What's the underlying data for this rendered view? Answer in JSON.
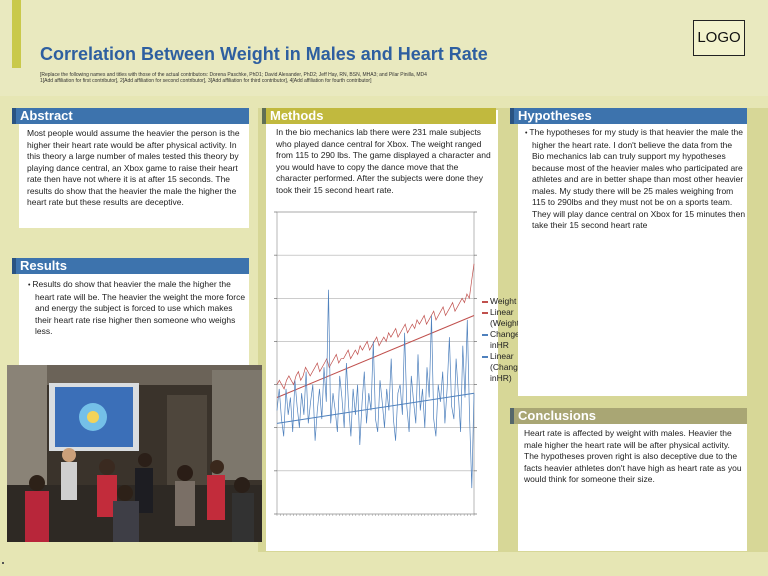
{
  "header": {
    "title": "Correlation Between Weight in Males and Heart Rate",
    "authors_line1": "[Replace the following names and titles with those of the actual contributors: Dorena Paschke, PhD1; David Alexander, PhD2; Jeff Hay, RN, BSN, MHA3; and Pilar Pinilla, MD4",
    "authors_line2": "1[Add affiliation for first contributor], 2[Add affiliation for second contributor], 3[Add affiliation for third contributor], 4[Add affiliation for fourth contributor]",
    "logo": "LOGO"
  },
  "abstract": {
    "heading": "Abstract",
    "text": "Most people would assume the heavier the person is the higher their heart rate would be after physical activity. In this theory a large number of males tested this theory by playing dance central, an Xbox game to raise their heart rate then have not where it is at after 15 seconds. The results do show that the heavier the male the higher the heart rate but these results are deceptive."
  },
  "results": {
    "heading": "Results",
    "text": "Results do show that heavier the male the higher the heart rate will be. The heavier the weight the more force and energy the subject is forced to use which makes their heart rate rise higher then someone who weighs less."
  },
  "methods": {
    "heading": "Methods",
    "text": "In the bio mechanics lab there were 231 male subjects who played dance central for Xbox. The weight ranged from 115 to 290 lbs. The game displayed a character and you would have to copy the dance move that the character performed. After the subjects were done they took their 15 second heart rate."
  },
  "hypotheses": {
    "heading": "Hypotheses",
    "text": "The hypotheses for my study is that heavier the male the higher the heart rate. I don't believe the data from the Bio mechanics lab can truly support my hypotheses because most of the heavier males who participated are athletes and are in better shape than most other heavier males. My study there will be 25 males weighing from 115 to 290lbs and they must not be on a sports team.  They will play dance central on Xbox for 15 minutes then take their 15 second heart rate"
  },
  "conclusions": {
    "heading": "Conclusions",
    "text": "Heart rate is affected by weight with males. Heavier the male higher the heart rate will be after physical activity. The hypotheses proven right is also deceptive due to the facts heavier athletes don't have high as heart rate as you would think for someone their size."
  },
  "colors": {
    "weight": "#c0504d",
    "change_hr": "#4f81bd",
    "header_blue": "#3d73ad",
    "header_gold": "#c1b93e",
    "header_olive": "#a9a674"
  },
  "chart_data": {
    "type": "line",
    "title": "",
    "xlabel": "",
    "ylabel": "",
    "grid": true,
    "legend": "right",
    "ylim": [
      0,
      7
    ],
    "series": [
      {
        "name": "Weight",
        "color": "#c0504d",
        "values": [
          3.0,
          3.1,
          3.0,
          2.9,
          3.1,
          3.2,
          3.1,
          3.0,
          3.2,
          3.3,
          3.1,
          3.2,
          3.4,
          3.3,
          3.2,
          3.3,
          3.4,
          3.5,
          3.3,
          3.4,
          3.5,
          3.6,
          3.4,
          3.5,
          3.6,
          3.7,
          3.5,
          3.6,
          3.6,
          3.7,
          3.8,
          3.6,
          3.7,
          3.8,
          3.7,
          3.9,
          3.8,
          3.9,
          4.0,
          3.8,
          3.9,
          4.0,
          4.1,
          3.9,
          4.0,
          4.1,
          4.0,
          4.2,
          4.1,
          4.2,
          4.3,
          4.1,
          4.2,
          4.3,
          4.4,
          4.2,
          4.3,
          4.4,
          4.3,
          4.5,
          4.4,
          4.5,
          4.6,
          4.4,
          4.5,
          4.6,
          4.7,
          4.5,
          4.6,
          4.7,
          4.8,
          4.6,
          4.7,
          4.8,
          4.9,
          4.7,
          4.8,
          4.9,
          5.0,
          4.9,
          5.1,
          5.0,
          5.4,
          5.8
        ]
      },
      {
        "name": "Linear (Weight)",
        "color": "#c0504d",
        "values": [
          2.7,
          4.6
        ]
      },
      {
        "name": "Change inHR",
        "color": "#4f81bd",
        "values": [
          2.4,
          2.9,
          2.2,
          1.8,
          2.9,
          2.3,
          2.7,
          1.9,
          3.1,
          2.5,
          2.0,
          2.8,
          2.3,
          3.3,
          2.1,
          2.6,
          3.0,
          1.7,
          2.4,
          2.9,
          2.2,
          3.4,
          2.6,
          5.2,
          2.1,
          2.8,
          2.4,
          1.9,
          3.2,
          2.7,
          2.0,
          3.5,
          2.5,
          1.8,
          2.9,
          2.3,
          3.0,
          1.6,
          2.6,
          3.3,
          2.1,
          2.8,
          2.4,
          4.0,
          2.2,
          1.9,
          3.1,
          2.6,
          2.0,
          2.9,
          2.4,
          3.6,
          2.2,
          1.7,
          2.8,
          3.0,
          2.3,
          4.2,
          2.5,
          1.9,
          3.2,
          2.6,
          2.1,
          3.7,
          2.4,
          2.9,
          2.0,
          3.4,
          2.7,
          4.6,
          2.2,
          1.8,
          3.0,
          2.6,
          3.3,
          2.1,
          2.9,
          4.1,
          2.5,
          2.2,
          3.6,
          2.8,
          1.9,
          3.9,
          2.7,
          4.5,
          2.3,
          0.6,
          2.8
        ]
      },
      {
        "name": "Linear (Change inHR)",
        "color": "#4f81bd",
        "values": [
          2.1,
          2.8
        ]
      }
    ]
  }
}
